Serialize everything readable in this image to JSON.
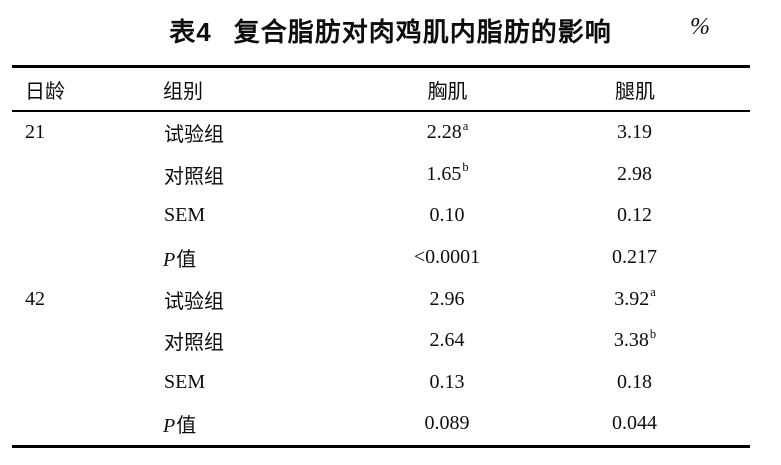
{
  "page": {
    "background": "#ffffff",
    "text_color": "#0d0d0d",
    "rule_color": "#000000"
  },
  "title": {
    "label": "表4",
    "text": "复合脂肪对肉鸡肌内脂肪的影响",
    "unit": "%"
  },
  "table": {
    "columns": [
      "日龄",
      "组别",
      "胸肌",
      "腿肌"
    ],
    "rows": [
      {
        "age": "21",
        "group_italic": "",
        "group": "试验组",
        "breast": "2.28",
        "breast_sup": "a",
        "leg": "3.19",
        "leg_sup": ""
      },
      {
        "age": "",
        "group_italic": "",
        "group": "对照组",
        "breast": "1.65",
        "breast_sup": "b",
        "leg": "2.98",
        "leg_sup": ""
      },
      {
        "age": "",
        "group_italic": "",
        "group": "SEM",
        "breast": "0.10",
        "breast_sup": "",
        "leg": "0.12",
        "leg_sup": ""
      },
      {
        "age": "",
        "group_italic": "P",
        "group": "值",
        "breast": "<0.0001",
        "breast_sup": "",
        "leg": "0.217",
        "leg_sup": ""
      },
      {
        "age": "42",
        "group_italic": "",
        "group": "试验组",
        "breast": "2.96",
        "breast_sup": "",
        "leg": "3.92",
        "leg_sup": "a"
      },
      {
        "age": "",
        "group_italic": "",
        "group": "对照组",
        "breast": "2.64",
        "breast_sup": "",
        "leg": "3.38",
        "leg_sup": "b"
      },
      {
        "age": "",
        "group_italic": "",
        "group": "SEM",
        "breast": "0.13",
        "breast_sup": "",
        "leg": "0.18",
        "leg_sup": ""
      },
      {
        "age": "",
        "group_italic": "P",
        "group": "值",
        "breast": "0.089",
        "breast_sup": "",
        "leg": "0.044",
        "leg_sup": ""
      }
    ]
  }
}
